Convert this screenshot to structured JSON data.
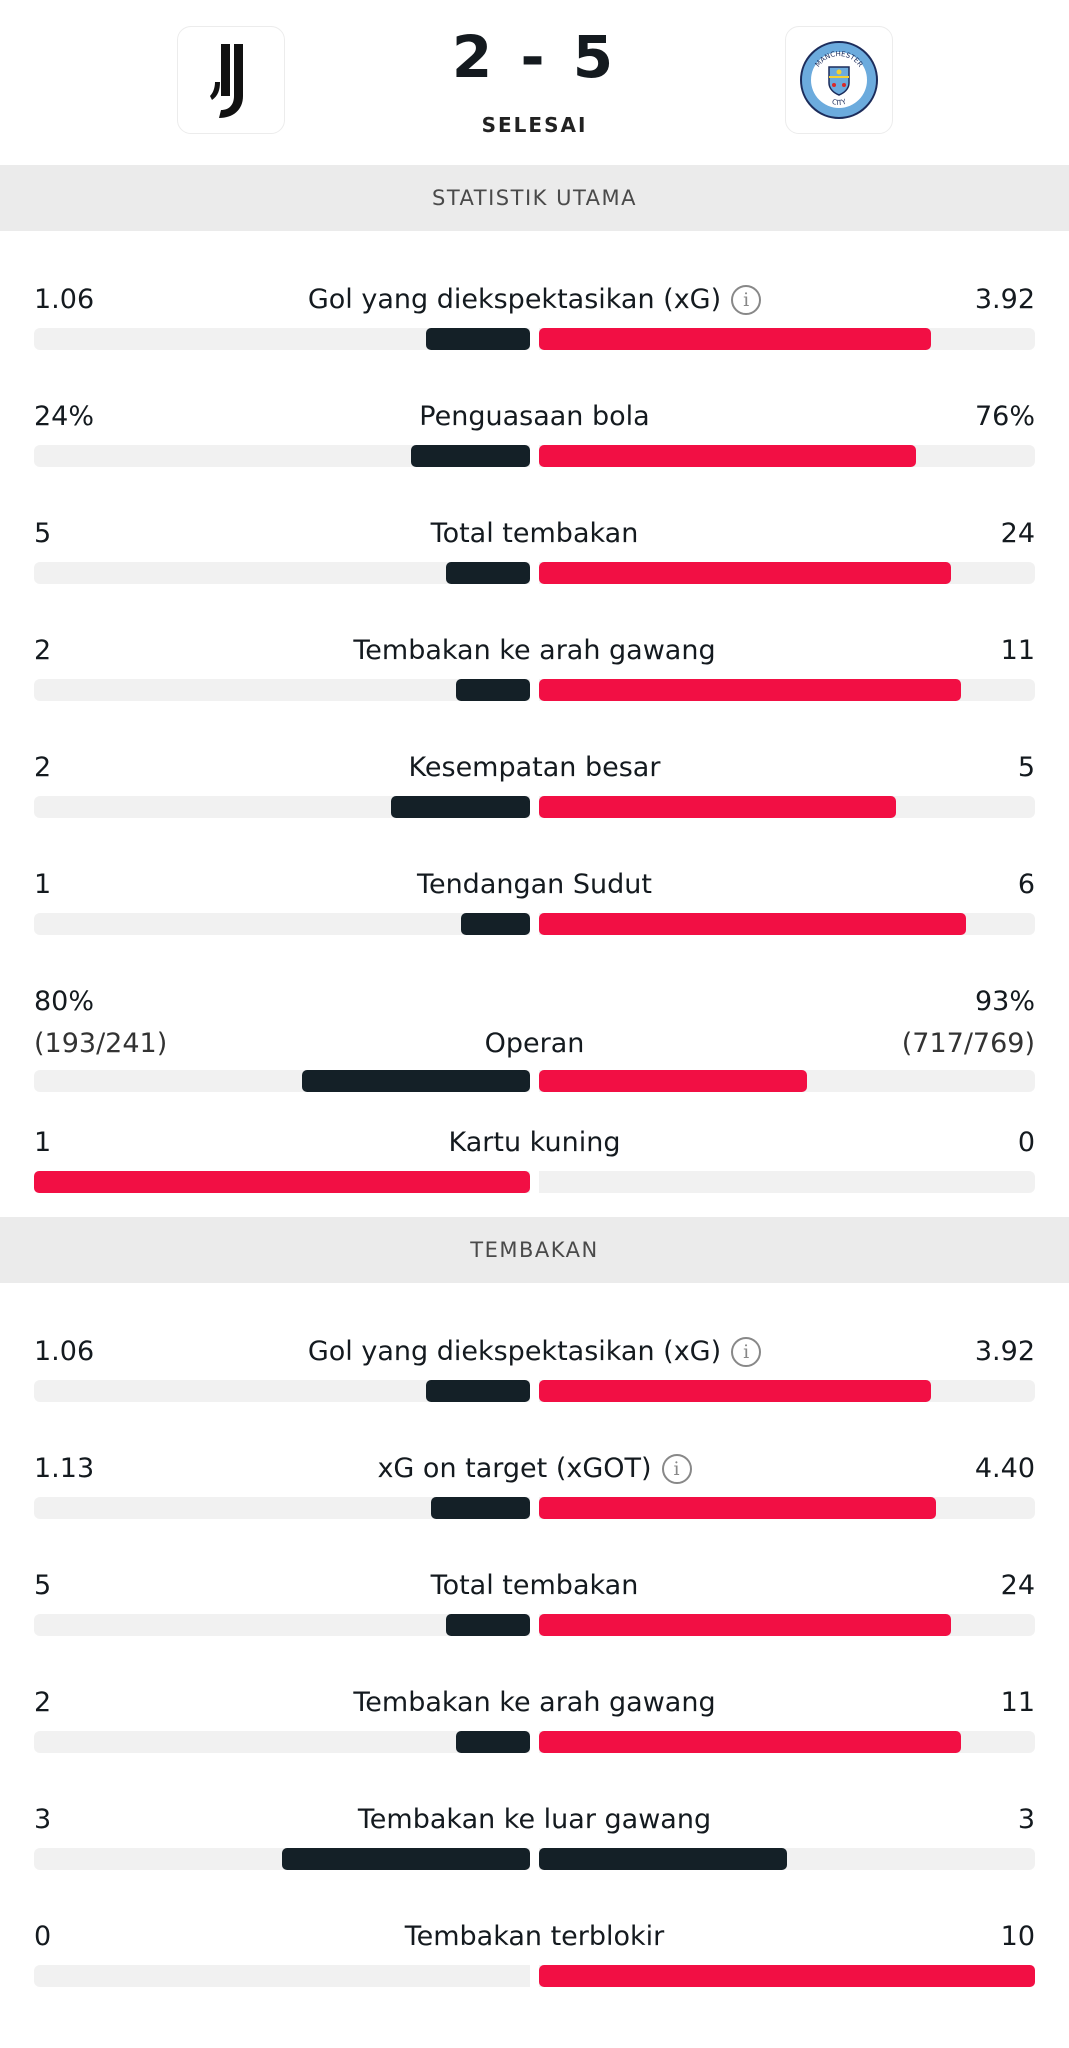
{
  "colors": {
    "dark": "#142027",
    "red": "#f20f44"
  },
  "match": {
    "home_logo_icon": "juventus-crest-icon",
    "away_logo_icon": "manchester-city-crest-icon",
    "away_crest_text_top": "MANCHESTER",
    "away_crest_text_bottom": "CITY",
    "score": "2 - 5",
    "status": "SELESAI"
  },
  "sections": [
    {
      "title": "STATISTIK UTAMA",
      "stats": [
        {
          "label": "Gol yang diekspektasikan (xG)",
          "info": true,
          "home": "1.06",
          "away": "3.92",
          "home_share": 0.21,
          "away_share": 0.79,
          "home_color": "dark",
          "away_color": "red"
        },
        {
          "label": "Penguasaan bola",
          "info": false,
          "home": "24%",
          "away": "76%",
          "home_share": 0.24,
          "away_share": 0.76,
          "home_color": "dark",
          "away_color": "red"
        },
        {
          "label": "Total tembakan",
          "info": false,
          "home": "5",
          "away": "24",
          "home_share": 0.17,
          "away_share": 0.83,
          "home_color": "dark",
          "away_color": "red"
        },
        {
          "label": "Tembakan ke arah gawang",
          "info": false,
          "home": "2",
          "away": "11",
          "home_share": 0.15,
          "away_share": 0.85,
          "home_color": "dark",
          "away_color": "red"
        },
        {
          "label": "Kesempatan besar",
          "info": false,
          "home": "2",
          "away": "5",
          "home_share": 0.28,
          "away_share": 0.72,
          "home_color": "dark",
          "away_color": "red"
        },
        {
          "label": "Tendangan Sudut",
          "info": false,
          "home": "1",
          "away": "6",
          "home_share": 0.14,
          "away_share": 0.86,
          "home_color": "dark",
          "away_color": "red"
        },
        {
          "label": "Operan",
          "info": false,
          "home": "80%",
          "away": "93%",
          "home_sub": "(193/241)",
          "away_sub": "(717/769)",
          "home_share": 0.46,
          "away_share": 0.54,
          "home_color": "dark",
          "away_color": "red"
        },
        {
          "label": "Kartu kuning",
          "info": false,
          "home": "1",
          "away": "0",
          "home_share": 1.0,
          "away_share": 0.0,
          "home_color": "red",
          "away_color": "red"
        }
      ]
    },
    {
      "title": "TEMBAKAN",
      "stats": [
        {
          "label": "Gol yang diekspektasikan (xG)",
          "info": true,
          "home": "1.06",
          "away": "3.92",
          "home_share": 0.21,
          "away_share": 0.79,
          "home_color": "dark",
          "away_color": "red"
        },
        {
          "label": "xG on target (xGOT)",
          "info": true,
          "home": "1.13",
          "away": "4.40",
          "home_share": 0.2,
          "away_share": 0.8,
          "home_color": "dark",
          "away_color": "red"
        },
        {
          "label": "Total tembakan",
          "info": false,
          "home": "5",
          "away": "24",
          "home_share": 0.17,
          "away_share": 0.83,
          "home_color": "dark",
          "away_color": "red"
        },
        {
          "label": "Tembakan ke arah gawang",
          "info": false,
          "home": "2",
          "away": "11",
          "home_share": 0.15,
          "away_share": 0.85,
          "home_color": "dark",
          "away_color": "red"
        },
        {
          "label": "Tembakan ke luar gawang",
          "info": false,
          "home": "3",
          "away": "3",
          "home_share": 0.5,
          "away_share": 0.5,
          "home_color": "dark",
          "away_color": "dark"
        },
        {
          "label": "Tembakan terblokir",
          "info": false,
          "home": "0",
          "away": "10",
          "home_share": 0.0,
          "away_share": 1.0,
          "home_color": "red",
          "away_color": "red"
        }
      ]
    }
  ]
}
